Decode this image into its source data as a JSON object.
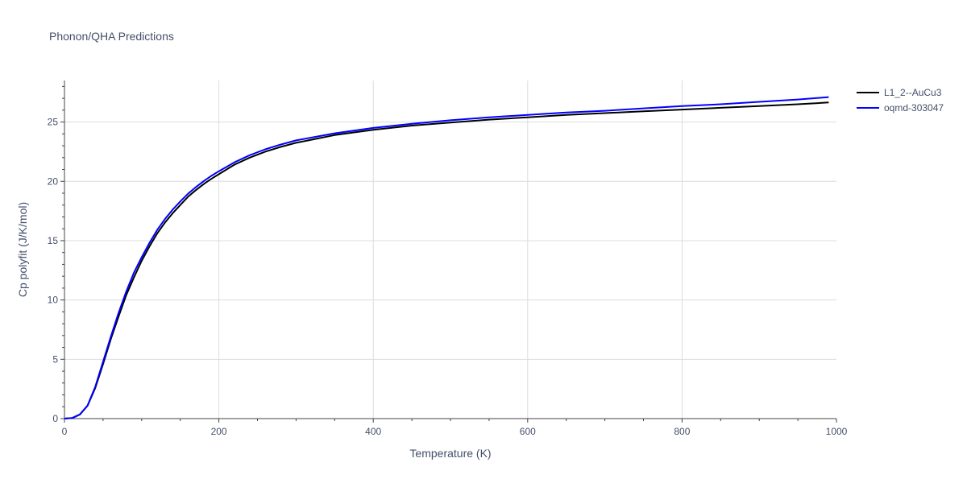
{
  "chart_data": {
    "type": "line",
    "title": "Phonon/QHA Predictions",
    "xlabel": "Temperature (K)",
    "ylabel": "Cp polyfit (J/K/mol)",
    "xlim": [
      0,
      1000
    ],
    "ylim": [
      0,
      28.5
    ],
    "x_ticks": [
      0,
      200,
      400,
      600,
      800,
      1000
    ],
    "x_tick_labels": [
      "0",
      "200",
      "400",
      "600",
      "800",
      "1000"
    ],
    "y_ticks": [
      0,
      5,
      10,
      15,
      20,
      25
    ],
    "y_tick_labels": [
      "0",
      "5",
      "10",
      "15",
      "20",
      "25"
    ],
    "grid": true,
    "legend_position": "top-right",
    "series": [
      {
        "name": "L1_2--AuCu3",
        "color": "#000000",
        "x": [
          0,
          10,
          20,
          30,
          40,
          50,
          60,
          70,
          80,
          90,
          100,
          110,
          120,
          130,
          140,
          150,
          160,
          170,
          180,
          190,
          200,
          220,
          240,
          260,
          280,
          300,
          350,
          400,
          450,
          500,
          550,
          600,
          650,
          700,
          750,
          800,
          850,
          900,
          950,
          990
        ],
        "y": [
          0,
          0.05,
          0.35,
          1.1,
          2.6,
          4.6,
          6.7,
          8.6,
          10.4,
          11.9,
          13.3,
          14.5,
          15.6,
          16.5,
          17.3,
          18.0,
          18.7,
          19.25,
          19.75,
          20.2,
          20.6,
          21.4,
          22.0,
          22.5,
          22.9,
          23.25,
          23.9,
          24.35,
          24.7,
          24.95,
          25.2,
          25.4,
          25.6,
          25.75,
          25.9,
          26.05,
          26.2,
          26.35,
          26.5,
          26.65
        ]
      },
      {
        "name": "oqmd-303047",
        "color": "#0000ff",
        "x": [
          0,
          10,
          20,
          30,
          40,
          50,
          60,
          70,
          80,
          90,
          100,
          110,
          120,
          130,
          140,
          150,
          160,
          170,
          180,
          190,
          200,
          220,
          240,
          260,
          280,
          300,
          350,
          400,
          450,
          500,
          550,
          600,
          650,
          700,
          750,
          800,
          850,
          900,
          950,
          990
        ],
        "y": [
          0,
          0.05,
          0.35,
          1.1,
          2.7,
          4.8,
          6.9,
          8.9,
          10.7,
          12.3,
          13.6,
          14.8,
          15.9,
          16.8,
          17.6,
          18.3,
          18.95,
          19.5,
          20.0,
          20.45,
          20.85,
          21.6,
          22.2,
          22.7,
          23.1,
          23.45,
          24.05,
          24.5,
          24.85,
          25.15,
          25.4,
          25.6,
          25.8,
          25.95,
          26.15,
          26.35,
          26.5,
          26.7,
          26.9,
          27.1
        ]
      }
    ]
  }
}
